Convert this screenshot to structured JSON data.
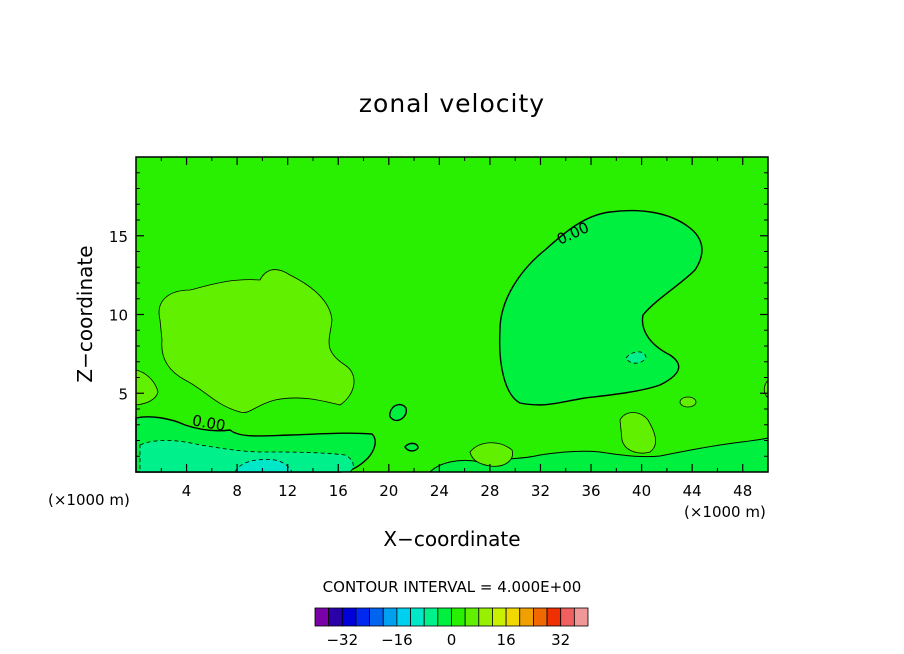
{
  "chart_data": {
    "type": "heatmap",
    "title": "zonal velocity",
    "xlabel": "X−coordinate",
    "ylabel": "Z−coordinate",
    "x_unit_left": "(×1000 m)",
    "x_unit_right": "(×1000 m)",
    "xlim": [
      0,
      50
    ],
    "ylim": [
      0,
      20
    ],
    "x_ticks": [
      4,
      8,
      12,
      16,
      20,
      24,
      28,
      32,
      36,
      40,
      44,
      48
    ],
    "y_ticks": [
      5,
      10,
      15
    ],
    "contour_label": "0.00",
    "contour_interval_text": "CONTOUR INTERVAL = 4.000E+00",
    "colorbar": {
      "ticks": [
        "−32",
        "−16",
        "0",
        "16",
        "32"
      ],
      "tick_values": [
        -32,
        -16,
        0,
        16,
        32
      ],
      "levels": [
        -36,
        -32,
        -28,
        -24,
        -20,
        -16,
        -12,
        -8,
        -4,
        0,
        4,
        8,
        12,
        16,
        20,
        24,
        28,
        32,
        36
      ],
      "colors": [
        "#7a00a8",
        "#2a00a8",
        "#0000d8",
        "#0028f0",
        "#0064f0",
        "#00a0f0",
        "#00d0f0",
        "#00e8c8",
        "#00f08c",
        "#00f040",
        "#28f000",
        "#60f000",
        "#98f000",
        "#c8f000",
        "#f0d800",
        "#f0a000",
        "#f06800",
        "#f03000",
        "#f06060",
        "#f09898"
      ]
    },
    "fields": {
      "background": {
        "value": 0,
        "color": "#28f000"
      },
      "positive_region": {
        "description_value": 4,
        "color": "#60f000"
      },
      "negative_region": {
        "description_value": -4,
        "color": "#00f040"
      },
      "negative_bottom": {
        "description_value": -8,
        "color": "#00f08c"
      },
      "negative_strong": {
        "description_value": -12,
        "color": "#00e8c8"
      }
    }
  }
}
